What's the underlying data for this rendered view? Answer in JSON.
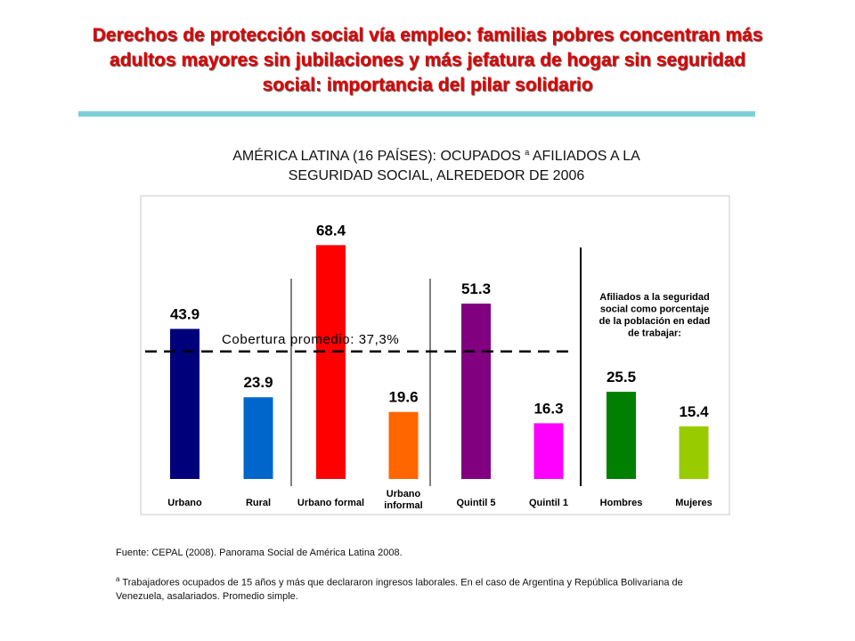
{
  "title_lines": [
    "Derechos de protección social vía empleo: familias pobres concentran más",
    "adultos mayores sin jubilaciones y más jefatura de hogar sin seguridad",
    "social: importancia del pilar solidario"
  ],
  "chart_data": {
    "type": "bar",
    "title_line1_pre": "AMÉRICA LATINA (16 PAÍSES): OCUPADOS",
    "title_sup": "a",
    "title_line1_post": "AFILIADOS A LA",
    "title_line2": "SEGURIDAD SOCIAL, ALREDEDOR DE 2006",
    "categories": [
      "Urbano",
      "Rural",
      "Urbano formal",
      "Urbano informal",
      "Quintil 5",
      "Quintil 1",
      "Hombres",
      "Mujeres"
    ],
    "category_lines": [
      [
        "Urbano"
      ],
      [
        "Rural"
      ],
      [
        "Urbano formal"
      ],
      [
        "Urbano",
        "informal"
      ],
      [
        "Quintil 5"
      ],
      [
        "Quintil 1"
      ],
      [
        "Hombres"
      ],
      [
        "Mujeres"
      ]
    ],
    "values": [
      43.9,
      23.9,
      68.4,
      19.6,
      51.3,
      16.3,
      25.5,
      15.4
    ],
    "value_labels": [
      "43.9",
      "23.9",
      "68.4",
      "19.6",
      "51.3",
      "16.3",
      "25.5",
      "15.4"
    ],
    "colors": [
      "#00007a",
      "#0066cc",
      "#ff0000",
      "#ff6600",
      "#800080",
      "#ff00ff",
      "#008000",
      "#99cc00"
    ],
    "ylim": [
      0,
      80
    ],
    "reference_line": {
      "value": 37.3,
      "label": "Cobertura promedio: 37,3%"
    },
    "annotation": [
      "Afiliados a la seguridad",
      "social como porcentaje",
      "de la población en edad",
      "de trabajar:"
    ],
    "xlabel": "",
    "ylabel": "",
    "grid": false
  },
  "footnotes": {
    "source_label": "Fuente",
    "source_text": ": CEPAL (2008).  Panorama Social de América Latina 2008.",
    "note_sup": "a",
    "note_text": " Trabajadores ocupados de 15 años y más que declararon ingresos laborales. En el caso de Argentina y República Bolivariana de Venezuela,  asalariados. Promedio simple."
  }
}
